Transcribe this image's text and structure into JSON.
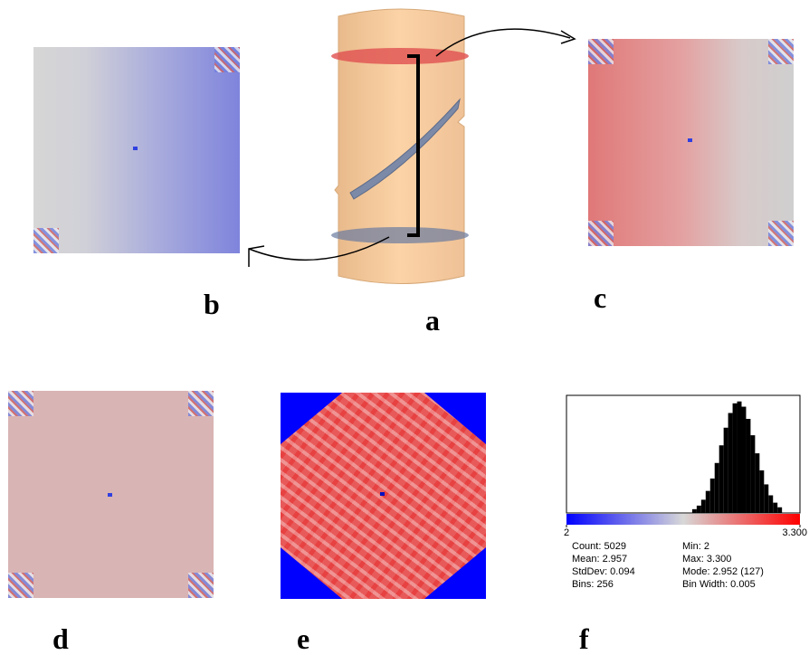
{
  "panel_labels": [
    "a",
    "b",
    "c",
    "d",
    "e",
    "f"
  ],
  "chart_data": {
    "type": "histogram",
    "bins": [
      2.7,
      2.725,
      2.75,
      2.775,
      2.8,
      2.825,
      2.85,
      2.875,
      2.9,
      2.925,
      2.95,
      2.975,
      3.0,
      3.025,
      3.05,
      3.075,
      3.1,
      3.125,
      3.15,
      3.175,
      3.2
    ],
    "values": [
      18,
      35,
      63,
      105,
      164,
      238,
      322,
      406,
      476,
      522,
      531,
      506,
      448,
      370,
      284,
      203,
      136,
      84,
      49,
      27
    ],
    "color": "#000000",
    "xlim": [
      2,
      3.3
    ],
    "xticks": [
      2,
      {
        "value": 3.3,
        "label": "3.300"
      }
    ],
    "ylim": [
      0,
      560
    ],
    "stats": [
      "Count: 5029",
      "Min: 2",
      "Mean: 2.957",
      "Max: 3.300",
      "StdDev: 0.094",
      "Mode: 2.952 (127)",
      "Bins: 256",
      "Bin Width: 0.005"
    ]
  }
}
